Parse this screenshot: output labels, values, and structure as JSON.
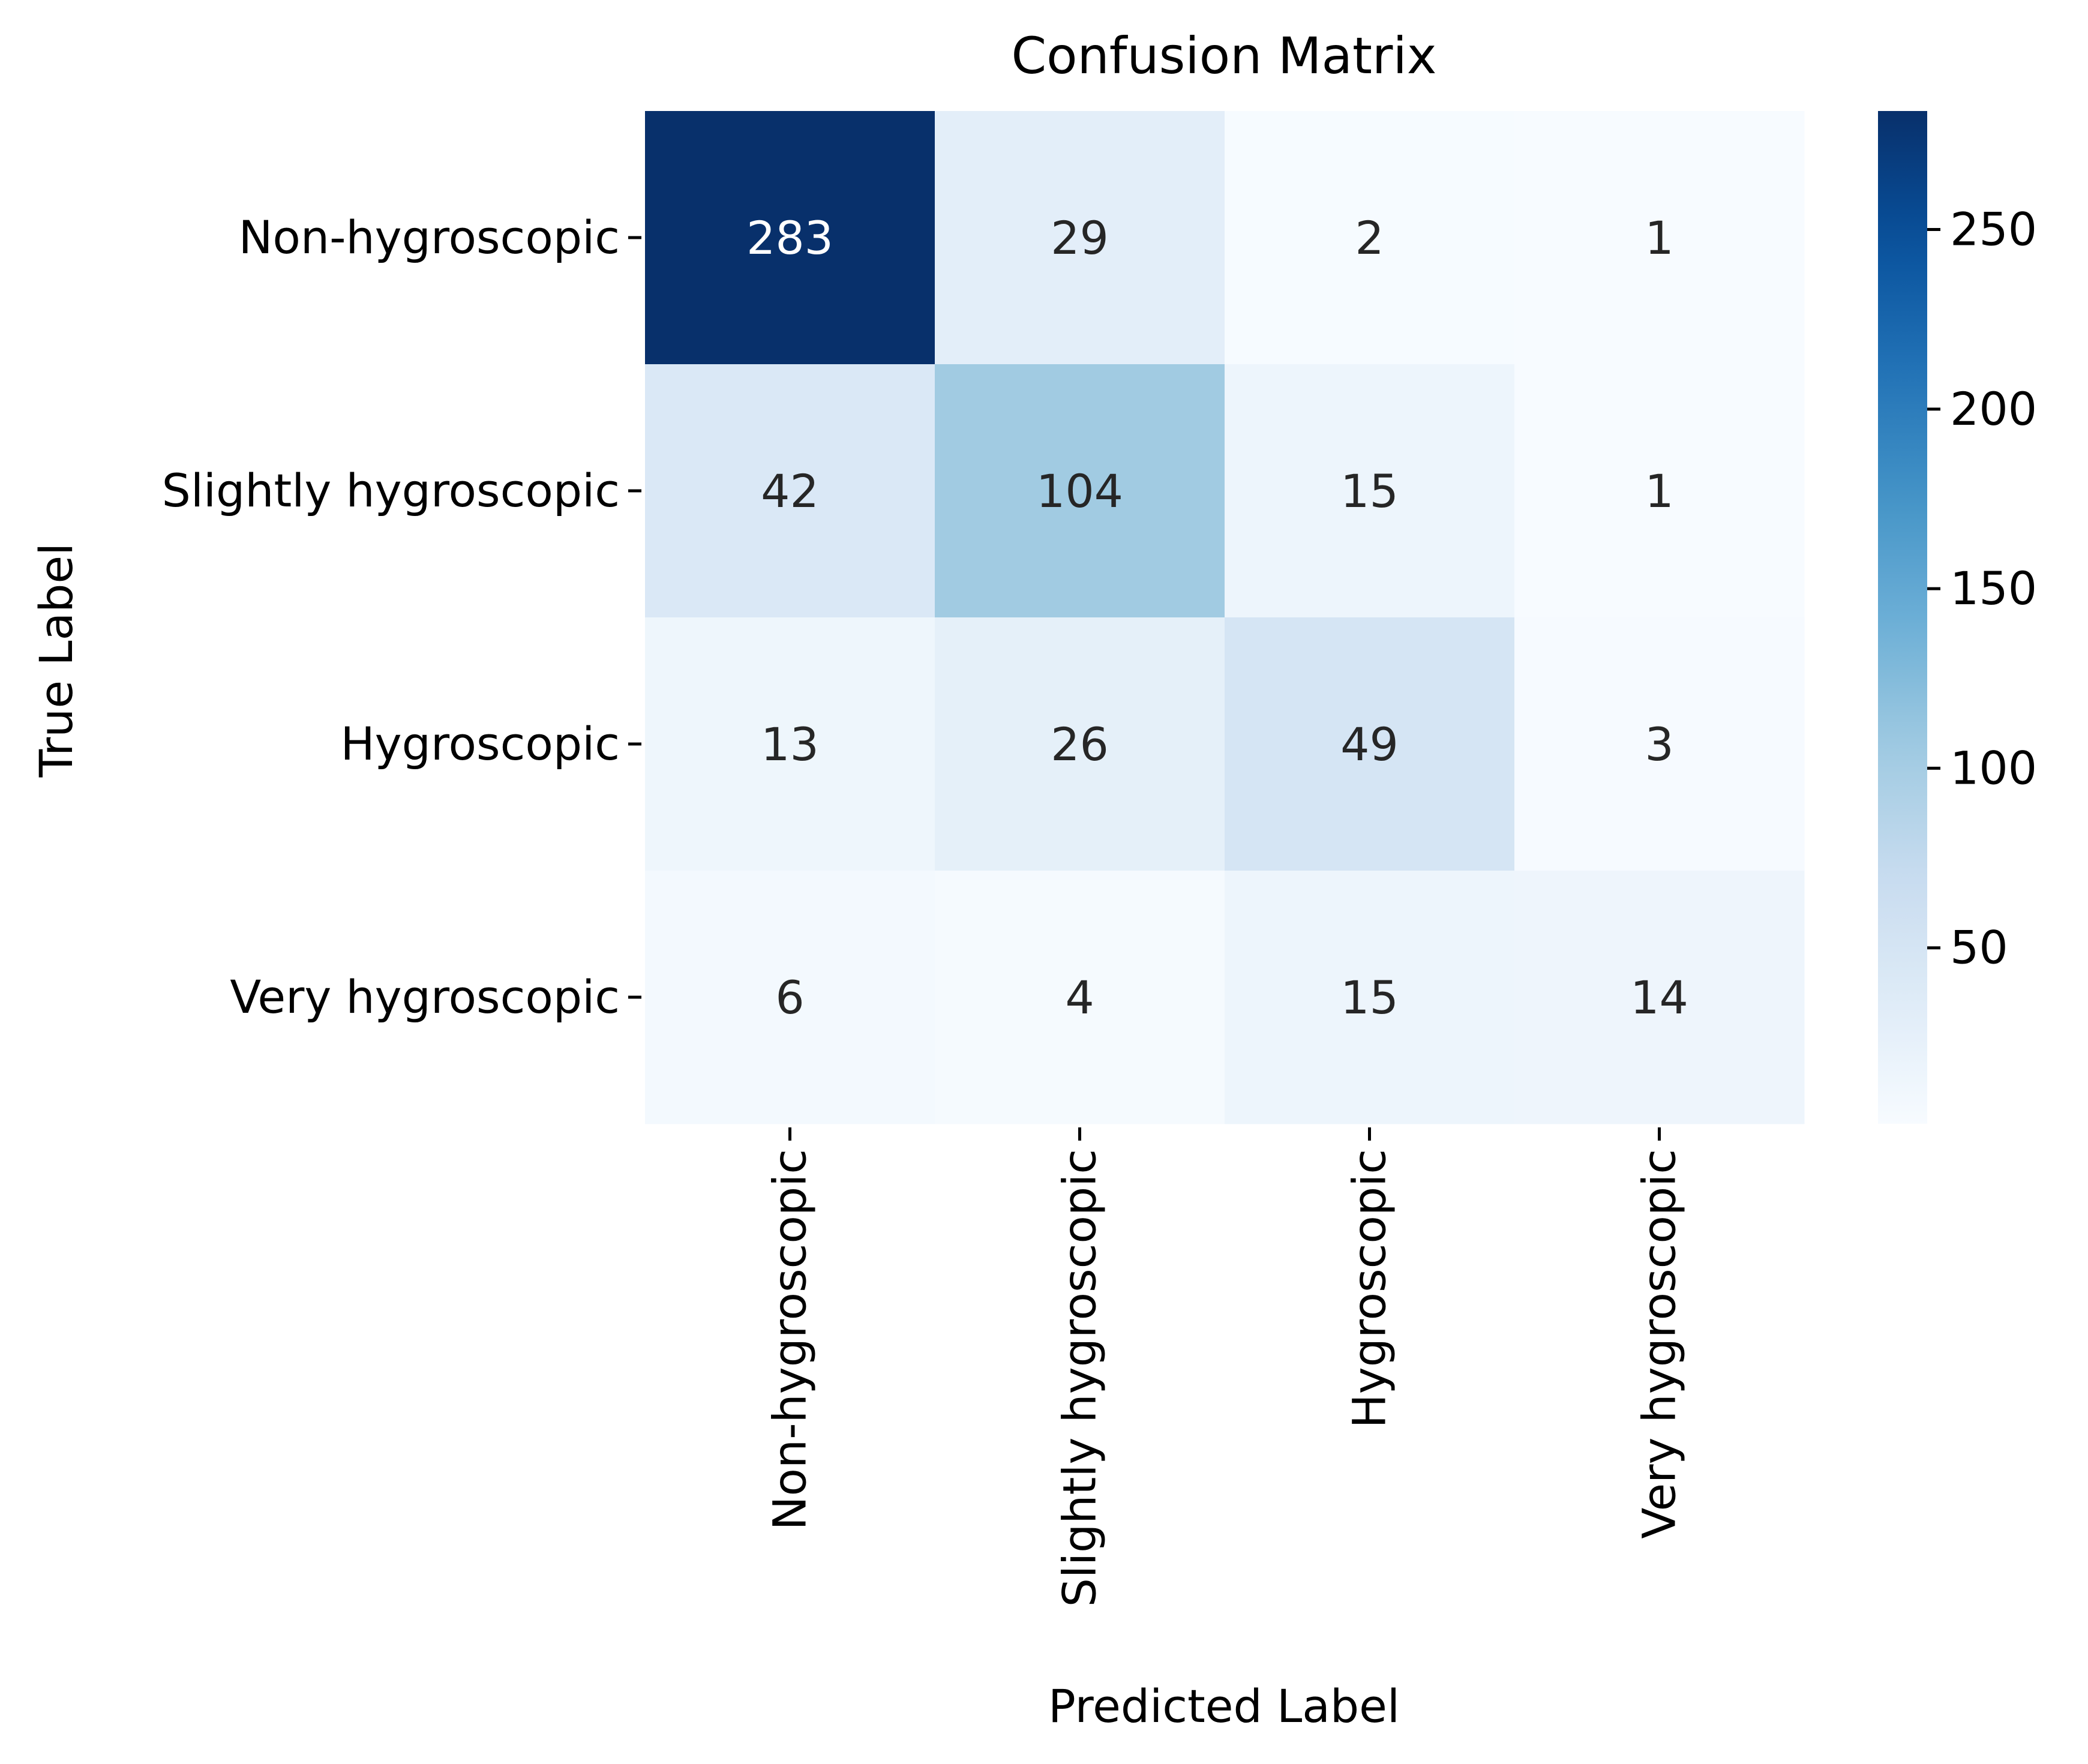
{
  "chart_data": {
    "type": "heatmap",
    "title": "Confusion Matrix",
    "xlabel": "Predicted Label",
    "ylabel": "True Label",
    "x_categories": [
      "Non-hygroscopic",
      "Slightly hygroscopic",
      "Hygroscopic",
      "Very hygroscopic"
    ],
    "y_categories": [
      "Non-hygroscopic",
      "Slightly hygroscopic",
      "Hygroscopic",
      "Very hygroscopic"
    ],
    "values": [
      [
        283,
        29,
        2,
        1
      ],
      [
        42,
        104,
        15,
        1
      ],
      [
        13,
        26,
        49,
        3
      ],
      [
        6,
        4,
        15,
        14
      ]
    ],
    "colormap": "Blues",
    "color_range": [
      1,
      283
    ],
    "colorbar_ticks": [
      50,
      100,
      150,
      200,
      250
    ],
    "colors": {
      "low": "#f7fbff",
      "high": "#08306b",
      "text_dark": "#262626",
      "text_light": "#ffffff",
      "axis": "#000000"
    }
  }
}
